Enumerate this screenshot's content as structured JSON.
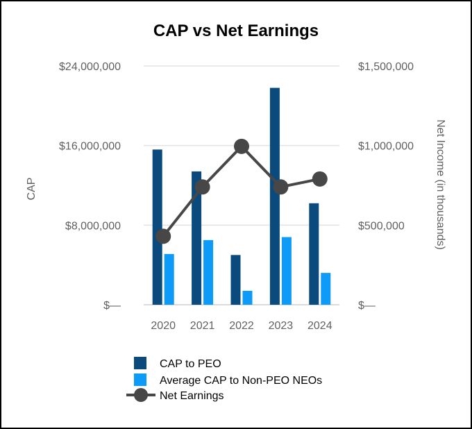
{
  "chart_data": {
    "type": "bar",
    "title": "CAP vs Net Earnings",
    "categories": [
      "2020",
      "2021",
      "2022",
      "2023",
      "2024"
    ],
    "series": [
      {
        "name": "CAP to PEO",
        "type": "bar",
        "axis": "left",
        "color": "#0b4a7d",
        "values": [
          15600000,
          13400000,
          5000000,
          21800000,
          10200000
        ]
      },
      {
        "name": "Average CAP to Non-PEO NEOs",
        "type": "bar",
        "axis": "left",
        "color": "#0d9bf7",
        "values": [
          5100000,
          6500000,
          1400000,
          6800000,
          3200000
        ]
      },
      {
        "name": "Net Earnings",
        "type": "line",
        "axis": "right",
        "color": "#474747",
        "values": [
          430000,
          740000,
          995000,
          740000,
          790000
        ]
      }
    ],
    "y_left": {
      "label": "CAP",
      "ylim": [
        0,
        24000000
      ],
      "ticks": [
        0,
        8000000,
        16000000,
        24000000
      ],
      "tick_labels": [
        "$—",
        "$8,000,000",
        "$16,000,000",
        "$24,000,000"
      ]
    },
    "y_right": {
      "label": "Net Income (in thousands)",
      "ylim": [
        0,
        1500000
      ],
      "ticks": [
        0,
        500000,
        1000000,
        1500000
      ],
      "tick_labels": [
        "$—",
        "$500,000",
        "$1,000,000",
        "$1,500,000"
      ]
    },
    "grid": true,
    "legend_position": "bottom-left"
  }
}
